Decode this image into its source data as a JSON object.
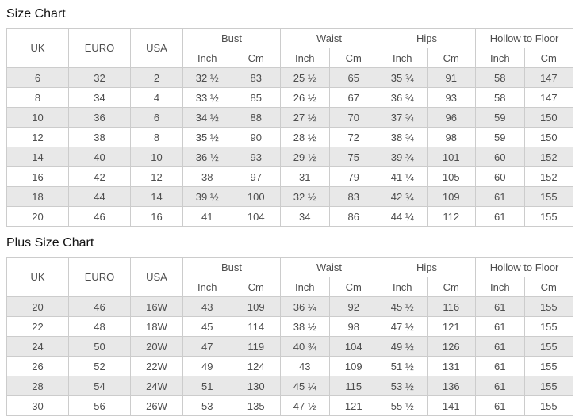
{
  "colors": {
    "alt_row_bg": "#e8e8e8",
    "border": "#cccccc",
    "cell_text": "#4d4d4d",
    "title_text": "#111111",
    "background": "#ffffff"
  },
  "chart_data": [
    {
      "type": "table",
      "title": "Size Chart",
      "measure_headers": [
        "UK",
        "EURO",
        "USA"
      ],
      "group_headers": [
        "Bust",
        "Waist",
        "Hips",
        "Hollow to Floor"
      ],
      "unit_headers": [
        "Inch",
        "Cm"
      ],
      "rows": [
        [
          "6",
          "32",
          "2",
          "32 ½",
          "83",
          "25 ½",
          "65",
          "35 ¾",
          "91",
          "58",
          "147"
        ],
        [
          "8",
          "34",
          "4",
          "33 ½",
          "85",
          "26 ½",
          "67",
          "36 ¾",
          "93",
          "58",
          "147"
        ],
        [
          "10",
          "36",
          "6",
          "34 ½",
          "88",
          "27 ½",
          "70",
          "37 ¾",
          "96",
          "59",
          "150"
        ],
        [
          "12",
          "38",
          "8",
          "35 ½",
          "90",
          "28 ½",
          "72",
          "38 ¾",
          "98",
          "59",
          "150"
        ],
        [
          "14",
          "40",
          "10",
          "36 ½",
          "93",
          "29 ½",
          "75",
          "39 ¾",
          "101",
          "60",
          "152"
        ],
        [
          "16",
          "42",
          "12",
          "38",
          "97",
          "31",
          "79",
          "41 ¼",
          "105",
          "60",
          "152"
        ],
        [
          "18",
          "44",
          "14",
          "39 ½",
          "100",
          "32 ½",
          "83",
          "42 ¾",
          "109",
          "61",
          "155"
        ],
        [
          "20",
          "46",
          "16",
          "41",
          "104",
          "34",
          "86",
          "44 ¼",
          "112",
          "61",
          "155"
        ]
      ]
    },
    {
      "type": "table",
      "title": "Plus Size Chart",
      "measure_headers": [
        "UK",
        "EURO",
        "USA"
      ],
      "group_headers": [
        "Bust",
        "Waist",
        "Hips",
        "Hollow to Floor"
      ],
      "unit_headers": [
        "Inch",
        "Cm"
      ],
      "rows": [
        [
          "20",
          "46",
          "16W",
          "43",
          "109",
          "36 ¼",
          "92",
          "45 ½",
          "116",
          "61",
          "155"
        ],
        [
          "22",
          "48",
          "18W",
          "45",
          "114",
          "38 ½",
          "98",
          "47 ½",
          "121",
          "61",
          "155"
        ],
        [
          "24",
          "50",
          "20W",
          "47",
          "119",
          "40 ¾",
          "104",
          "49 ½",
          "126",
          "61",
          "155"
        ],
        [
          "26",
          "52",
          "22W",
          "49",
          "124",
          "43",
          "109",
          "51 ½",
          "131",
          "61",
          "155"
        ],
        [
          "28",
          "54",
          "24W",
          "51",
          "130",
          "45 ¼",
          "115",
          "53 ½",
          "136",
          "61",
          "155"
        ],
        [
          "30",
          "56",
          "26W",
          "53",
          "135",
          "47 ½",
          "121",
          "55 ½",
          "141",
          "61",
          "155"
        ]
      ]
    }
  ]
}
